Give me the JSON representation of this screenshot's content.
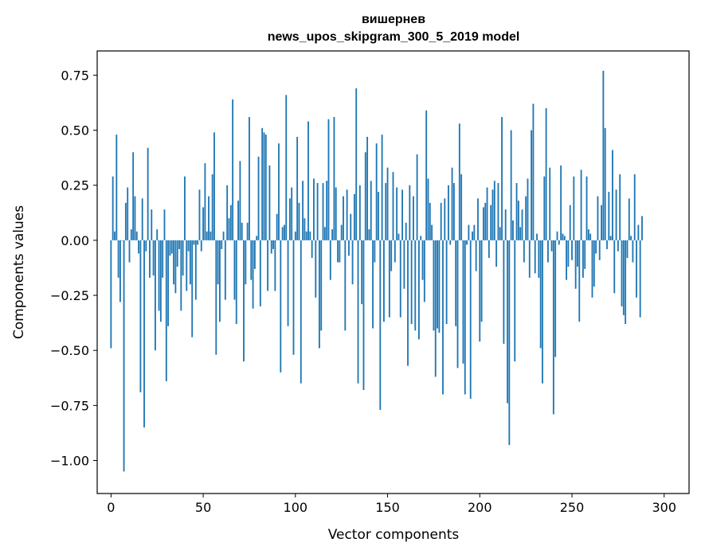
{
  "chart_data": {
    "type": "bar",
    "title": "вишернев",
    "subtitle": "news_upos_skipgram_300_5_2019 model",
    "xlabel": "Vector components",
    "ylabel": "Components values",
    "xlim": [
      -7.5,
      313.5
    ],
    "ylim": [
      -1.15,
      0.86
    ],
    "grid": false,
    "legend": "none",
    "color": "#1f77b4",
    "x_ticks": [
      0,
      50,
      100,
      150,
      200,
      250,
      300
    ],
    "y_ticks": [
      0.75,
      0.5,
      0.25,
      0.0,
      -0.25,
      -0.5,
      -0.75,
      -1.0
    ],
    "x_tick_labels": [
      "0",
      "50",
      "100",
      "150",
      "200",
      "250",
      "300"
    ],
    "y_tick_labels": [
      "0.75",
      "0.50",
      "0.25",
      "0.00",
      "−0.25",
      "−0.50",
      "−0.75",
      "−1.00"
    ],
    "values": [
      -0.49,
      0.29,
      0.04,
      0.48,
      -0.17,
      -0.28,
      0.0,
      -1.05,
      0.17,
      0.24,
      -0.1,
      0.05,
      0.4,
      0.2,
      0.04,
      -0.06,
      -0.69,
      0.19,
      -0.85,
      -0.05,
      0.42,
      -0.17,
      0.14,
      -0.16,
      -0.5,
      0.05,
      -0.32,
      -0.37,
      -0.17,
      0.14,
      -0.64,
      -0.39,
      -0.07,
      -0.06,
      -0.2,
      -0.24,
      -0.12,
      -0.04,
      -0.32,
      -0.16,
      0.29,
      -0.23,
      -0.05,
      -0.2,
      -0.44,
      -0.02,
      -0.27,
      -0.02,
      0.23,
      -0.05,
      0.15,
      0.35,
      0.04,
      0.2,
      0.04,
      0.3,
      0.49,
      -0.52,
      -0.2,
      -0.37,
      -0.04,
      0.04,
      -0.27,
      0.25,
      0.1,
      0.16,
      0.64,
      -0.27,
      -0.38,
      0.18,
      0.36,
      0.08,
      -0.55,
      -0.2,
      0.08,
      0.56,
      -0.18,
      -0.31,
      -0.13,
      0.02,
      0.38,
      -0.3,
      0.51,
      0.49,
      0.48,
      -0.23,
      0.34,
      -0.06,
      -0.04,
      -0.23,
      0.12,
      0.44,
      -0.6,
      0.06,
      0.07,
      0.66,
      -0.39,
      0.19,
      0.24,
      -0.52,
      0.04,
      0.47,
      0.17,
      -0.65,
      0.27,
      0.1,
      0.04,
      0.54,
      0.04,
      -0.08,
      0.28,
      -0.26,
      0.26,
      -0.49,
      -0.41,
      0.26,
      0.06,
      0.27,
      0.55,
      -0.18,
      0.05,
      0.56,
      0.24,
      -0.1,
      -0.1,
      0.07,
      0.2,
      -0.41,
      0.23,
      -0.07,
      0.12,
      -0.2,
      0.21,
      0.69,
      -0.65,
      0.25,
      -0.29,
      -0.68,
      0.4,
      0.47,
      0.05,
      0.27,
      -0.4,
      -0.1,
      0.44,
      0.22,
      -0.77,
      0.48,
      -0.37,
      0.26,
      0.33,
      -0.35,
      -0.14,
      0.31,
      -0.1,
      0.24,
      0.03,
      -0.35,
      0.23,
      -0.22,
      0.08,
      -0.57,
      0.25,
      -0.38,
      0.2,
      -0.41,
      0.39,
      -0.45,
      0.02,
      -0.18,
      -0.28,
      0.59,
      0.28,
      0.17,
      0.07,
      -0.41,
      -0.62,
      -0.4,
      -0.42,
      0.17,
      -0.7,
      0.19,
      -0.38,
      0.25,
      -0.02,
      0.33,
      0.26,
      -0.39,
      -0.58,
      0.53,
      0.3,
      -0.56,
      -0.7,
      -0.02,
      0.07,
      -0.72,
      0.04,
      0.07,
      -0.14,
      0.19,
      -0.46,
      -0.37,
      0.15,
      0.17,
      0.24,
      -0.08,
      0.16,
      0.23,
      0.27,
      -0.12,
      0.26,
      0.06,
      0.56,
      -0.47,
      0.14,
      -0.74,
      -0.93,
      0.5,
      0.09,
      -0.55,
      0.26,
      0.18,
      0.06,
      0.14,
      -0.1,
      0.2,
      0.28,
      -0.17,
      0.5,
      0.62,
      -0.15,
      0.03,
      -0.17,
      -0.49,
      -0.65,
      0.29,
      0.6,
      -0.1,
      0.33,
      -0.05,
      -0.79,
      -0.53,
      0.04,
      -0.02,
      0.34,
      0.03,
      0.02,
      -0.18,
      -0.12,
      0.16,
      -0.09,
      0.29,
      -0.22,
      -0.12,
      -0.37,
      0.32,
      -0.17,
      -0.13,
      0.29,
      0.05,
      0.03,
      -0.26,
      -0.21,
      -0.06,
      0.2,
      -0.09,
      0.16,
      0.77,
      0.51,
      -0.04,
      0.22,
      0.02,
      0.41,
      -0.24,
      0.23,
      -0.05,
      0.3,
      -0.3,
      -0.34,
      -0.38,
      -0.08,
      0.19,
      0.02,
      -0.1,
      0.3,
      -0.26,
      0.07,
      -0.35,
      0.11
    ]
  }
}
